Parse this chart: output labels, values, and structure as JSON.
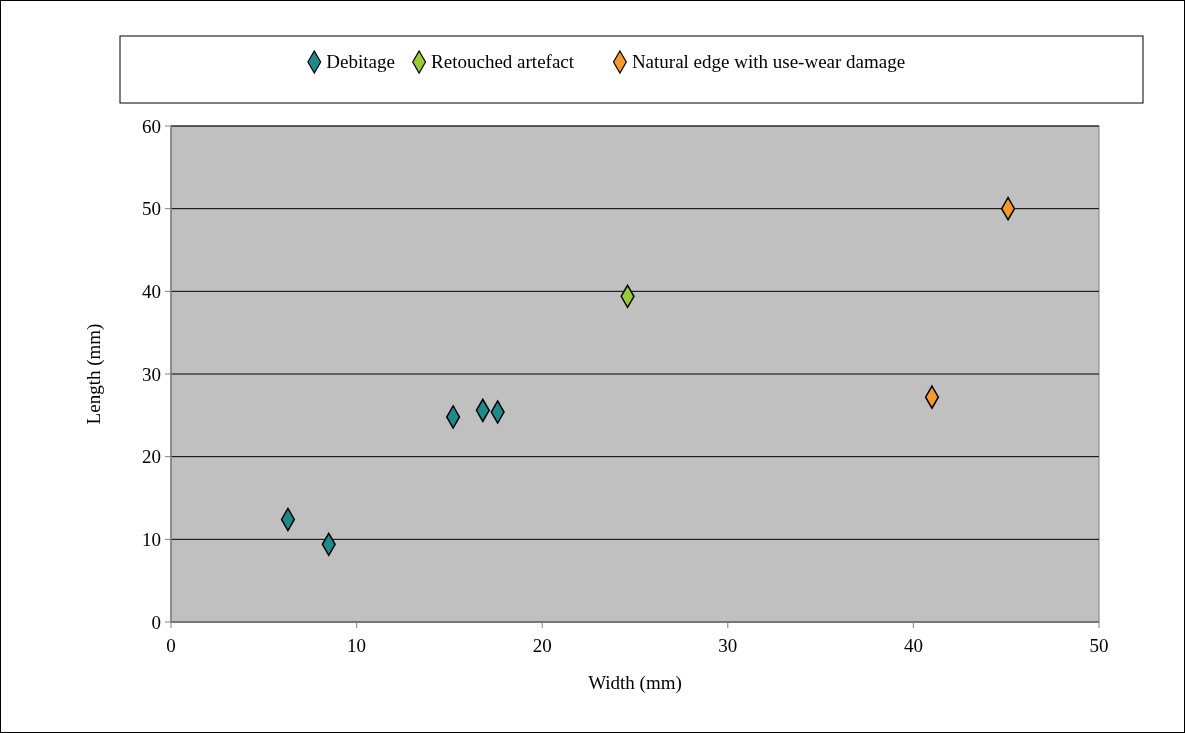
{
  "chart_data": {
    "type": "scatter",
    "xlabel": "Width (mm)",
    "ylabel": "Length (mm)",
    "xlim": [
      0,
      50
    ],
    "xticks": [
      0,
      10,
      20,
      30,
      40,
      50
    ],
    "ylim": [
      0,
      60
    ],
    "yticks": [
      0,
      10,
      20,
      30,
      40,
      50,
      60
    ],
    "grid": "y",
    "legend": "top",
    "marker": "diamond",
    "series": [
      {
        "name": "Debitage",
        "color": "#1f8a8a",
        "x": [
          6.3,
          8.5,
          15.2,
          16.8,
          17.6
        ],
        "values": [
          12.4,
          9.4,
          24.8,
          25.6,
          25.4
        ]
      },
      {
        "name": "Retouched artefact",
        "color": "#99cc33",
        "x": [
          24.6
        ],
        "values": [
          39.4
        ]
      },
      {
        "name": "Natural edge with use-wear damage",
        "color": "#f79a2e",
        "x": [
          45.1,
          41.0
        ],
        "values": [
          50.0,
          27.2
        ]
      }
    ]
  }
}
